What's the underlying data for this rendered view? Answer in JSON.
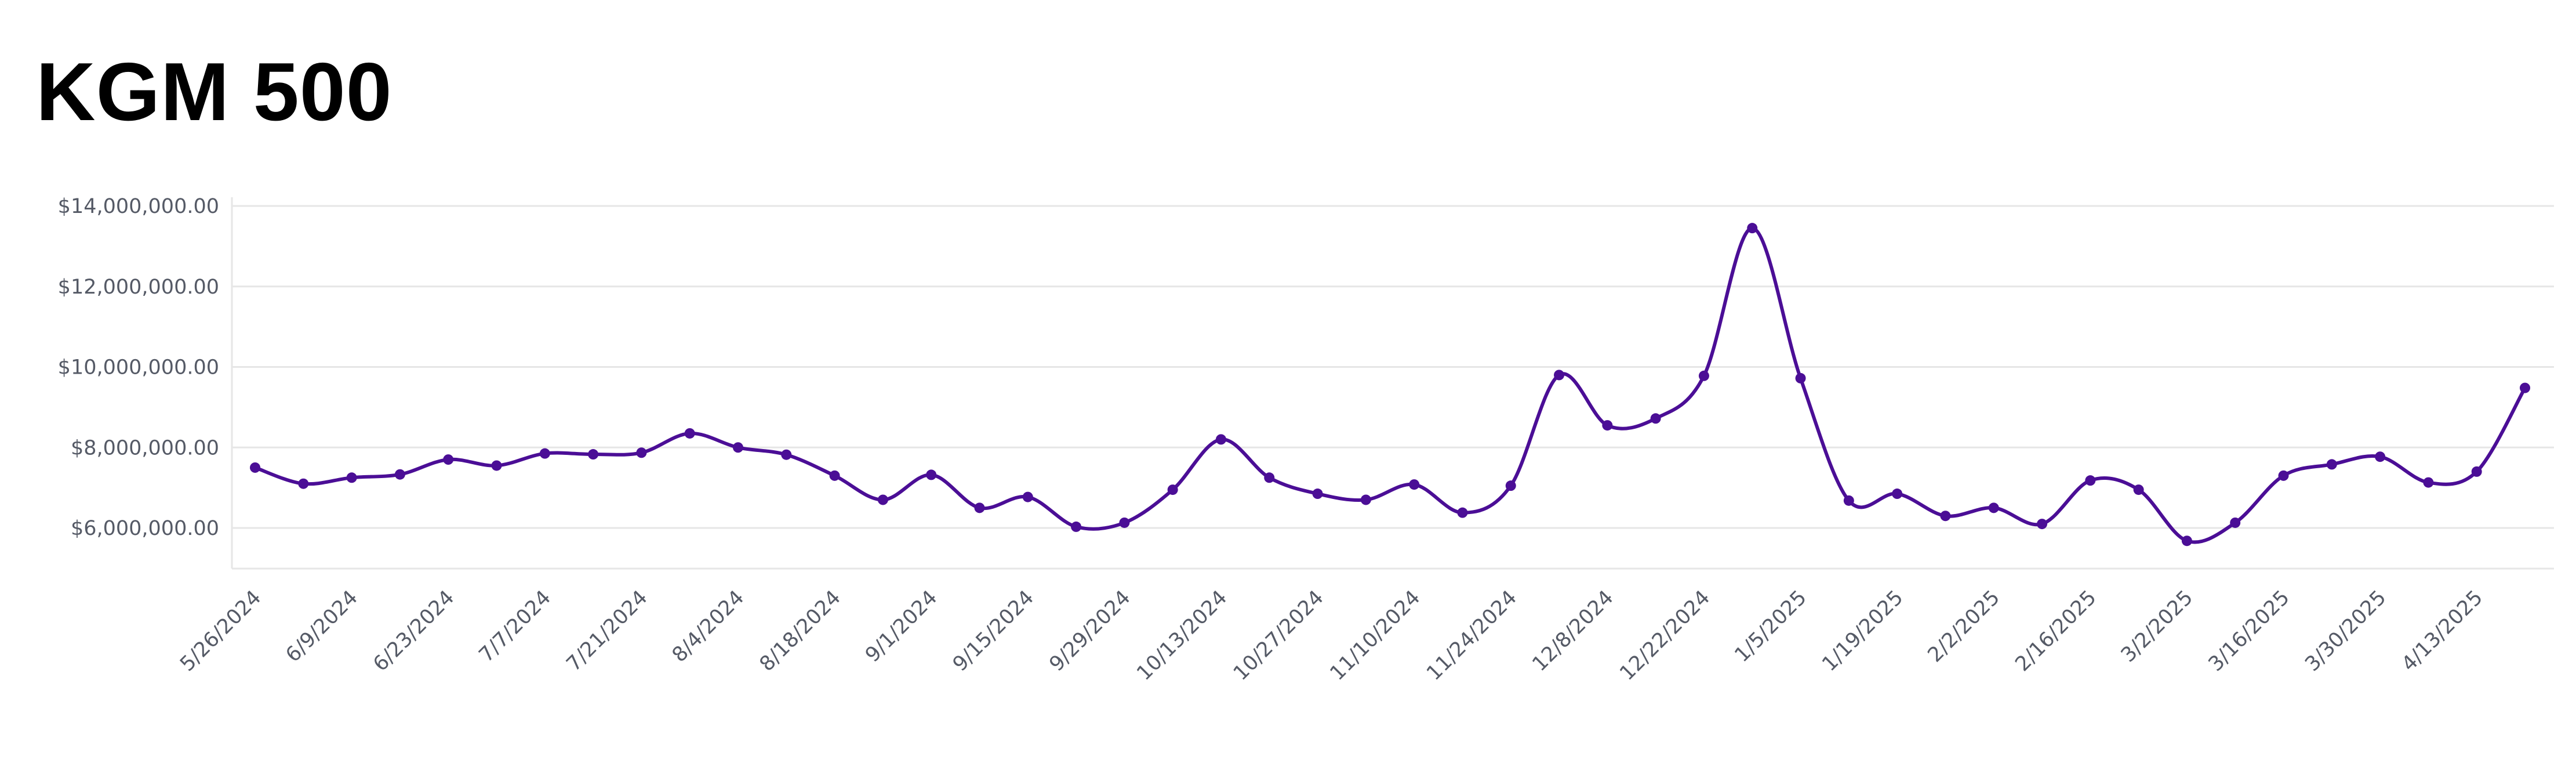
{
  "chart_data": {
    "type": "line",
    "title": "KGM 500",
    "xlabel": "",
    "ylabel": "",
    "ylim": [
      5000000,
      14500000
    ],
    "yticks": [
      6000000,
      8000000,
      10000000,
      12000000,
      14000000
    ],
    "ytick_labels": [
      "$6,000,000.00",
      "$8,000,000.00",
      "$10,000,000.00",
      "$12,000,000.00",
      "$14,000,000.00"
    ],
    "grid": true,
    "legend": "none",
    "line_color": "#4b0e96",
    "grid_color": "#e6e6e6",
    "x_tick_labels": [
      "5/26/2024",
      "6/9/2024",
      "6/23/2024",
      "7/7/2024",
      "7/21/2024",
      "8/4/2024",
      "8/18/2024",
      "9/1/2024",
      "9/15/2024",
      "9/29/2024",
      "10/13/2024",
      "10/27/2024",
      "11/10/2024",
      "11/24/2024",
      "12/8/2024",
      "12/22/2024",
      "1/5/2025",
      "1/19/2025",
      "2/2/2025",
      "2/16/2025",
      "3/2/2025",
      "3/16/2025",
      "3/30/2025",
      "4/13/2025"
    ],
    "x": [
      "5/26/2024",
      "6/2/2024",
      "6/9/2024",
      "6/16/2024",
      "6/23/2024",
      "6/30/2024",
      "7/7/2024",
      "7/14/2024",
      "7/21/2024",
      "7/28/2024",
      "8/4/2024",
      "8/11/2024",
      "8/18/2024",
      "8/25/2024",
      "9/1/2024",
      "9/8/2024",
      "9/15/2024",
      "9/22/2024",
      "9/29/2024",
      "10/6/2024",
      "10/13/2024",
      "10/20/2024",
      "10/27/2024",
      "11/3/2024",
      "11/10/2024",
      "11/17/2024",
      "11/24/2024",
      "12/1/2024",
      "12/8/2024",
      "12/15/2024",
      "12/22/2024",
      "12/29/2024",
      "1/5/2025",
      "1/12/2025",
      "1/19/2025",
      "1/26/2025",
      "2/2/2025",
      "2/9/2025",
      "2/16/2025",
      "2/23/2025",
      "3/2/2025",
      "3/9/2025",
      "3/16/2025",
      "3/23/2025",
      "3/30/2025",
      "4/6/2025",
      "4/13/2025",
      "4/20/2025"
    ],
    "series": [
      {
        "values": [
          7500000,
          7100000,
          7250000,
          7330000,
          7700000,
          7550000,
          7850000,
          7830000,
          7870000,
          8350000,
          8000000,
          7820000,
          7300000,
          6700000,
          7320000,
          6500000,
          6770000,
          6030000,
          6130000,
          6950000,
          8200000,
          7250000,
          6850000,
          6700000,
          7080000,
          6380000,
          7050000,
          9800000,
          8550000,
          8720000,
          9780000,
          13450000,
          9720000,
          6680000,
          6850000,
          6300000,
          6500000,
          6100000,
          7180000,
          6950000,
          5680000,
          6130000,
          7300000,
          7580000,
          7770000,
          7130000,
          7400000,
          9480000
        ]
      }
    ]
  }
}
